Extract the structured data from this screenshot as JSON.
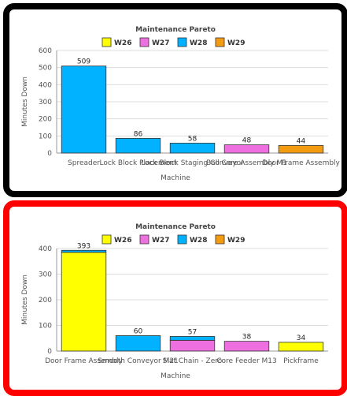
{
  "colors": {
    "W26": "#ffff00",
    "W27": "#ee6fe0",
    "W28": "#00b2ff",
    "W29": "#f39c12",
    "bar_stroke": "#333333",
    "panel_top_border": "#000000",
    "panel_bottom_border": "#ff0000"
  },
  "chart_data": [
    {
      "type": "bar",
      "stacked": true,
      "title": "Maintenance Pareto",
      "xlabel": "Machine",
      "ylabel": "Minutes Down",
      "legend": [
        "W26",
        "W27",
        "W28",
        "W29"
      ],
      "legend_position": "top",
      "grid": true,
      "ylim": [
        0,
        600
      ],
      "yticks": [
        0,
        100,
        200,
        300,
        400,
        500,
        600
      ],
      "categories": [
        "Spreader",
        "Lock Block Placement",
        "Lock Block Staging Conveyor",
        "Ball Core Assembly M1",
        "Door Frame Assembly"
      ],
      "series": [
        {
          "name": "W26",
          "values": [
            0,
            0,
            0,
            0,
            0
          ]
        },
        {
          "name": "W27",
          "values": [
            0,
            0,
            0,
            48,
            0
          ]
        },
        {
          "name": "W28",
          "values": [
            509,
            86,
            58,
            0,
            0
          ]
        },
        {
          "name": "W29",
          "values": [
            0,
            0,
            0,
            0,
            44
          ]
        }
      ],
      "totals": [
        509,
        86,
        58,
        48,
        44
      ]
    },
    {
      "type": "bar",
      "stacked": true,
      "title": "Maintenance Pareto",
      "xlabel": "Machine",
      "ylabel": "Minutes Down",
      "legend": [
        "W26",
        "W27",
        "W28",
        "W29"
      ],
      "legend_position": "top",
      "grid": true,
      "ylim": [
        0,
        400
      ],
      "yticks": [
        0,
        100,
        200,
        300,
        400
      ],
      "categories": [
        "Door Frame Assembly",
        "Smooth Conveyor M21",
        "Slat Chain - Zero",
        "Core Feeder M13",
        "Pickframe"
      ],
      "series": [
        {
          "name": "W26",
          "values": [
            385,
            0,
            0,
            0,
            34
          ]
        },
        {
          "name": "W27",
          "values": [
            0,
            0,
            42,
            38,
            0
          ]
        },
        {
          "name": "W28",
          "values": [
            8,
            60,
            15,
            0,
            0
          ]
        },
        {
          "name": "W29",
          "values": [
            0,
            0,
            0,
            0,
            0
          ]
        }
      ],
      "totals": [
        393,
        60,
        57,
        38,
        34
      ]
    }
  ]
}
